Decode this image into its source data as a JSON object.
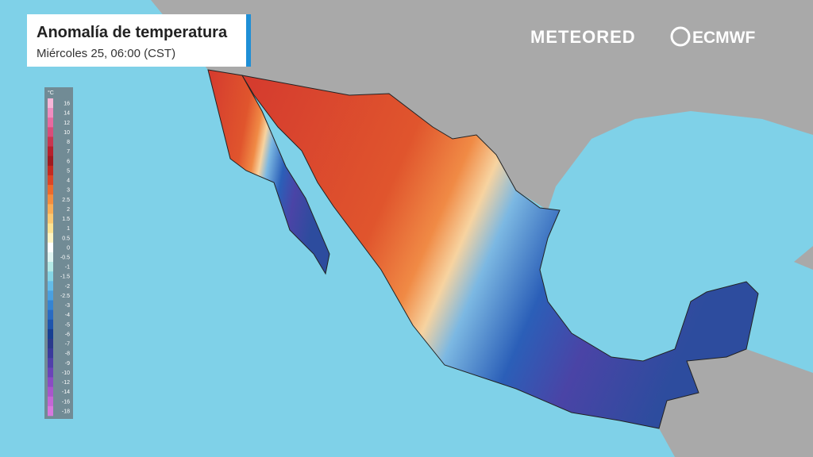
{
  "header": {
    "title": "Anomalía de temperatura",
    "subtitle": "Miércoles 25, 06:00 (CST)"
  },
  "logos": {
    "meteored": "METEORED",
    "ecmwf": "ECMWF"
  },
  "legend": {
    "unit": "°C",
    "items": [
      {
        "value": 16,
        "color": "#f7b6d8"
      },
      {
        "value": 14,
        "color": "#f08dc0"
      },
      {
        "value": 12,
        "color": "#e86aa0"
      },
      {
        "value": 10,
        "color": "#d94d7a"
      },
      {
        "value": 8,
        "color": "#c9364f"
      },
      {
        "value": 7,
        "color": "#b7202c"
      },
      {
        "value": 6,
        "color": "#a01a1f"
      },
      {
        "value": 5,
        "color": "#c42a20"
      },
      {
        "value": 4,
        "color": "#dc4526"
      },
      {
        "value": 3,
        "color": "#ee6a2c"
      },
      {
        "value": 2.5,
        "color": "#f58d3e"
      },
      {
        "value": 2,
        "color": "#f9ad56"
      },
      {
        "value": 1.5,
        "color": "#fbc972"
      },
      {
        "value": 1,
        "color": "#fde392"
      },
      {
        "value": 0.5,
        "color": "#fff4c2"
      },
      {
        "value": 0,
        "color": "#ffffff"
      },
      {
        "value": -0.5,
        "color": "#e0f5f2"
      },
      {
        "value": -1,
        "color": "#b4eae6"
      },
      {
        "value": -1.5,
        "color": "#85d6e6"
      },
      {
        "value": -2,
        "color": "#64bce8"
      },
      {
        "value": -2.5,
        "color": "#4aa0e0"
      },
      {
        "value": -3,
        "color": "#3584d2"
      },
      {
        "value": -4,
        "color": "#2a6bc2"
      },
      {
        "value": -5,
        "color": "#1e55ad"
      },
      {
        "value": -6,
        "color": "#173f92"
      },
      {
        "value": -7,
        "color": "#2a3a8c"
      },
      {
        "value": -8,
        "color": "#3a3a9c"
      },
      {
        "value": -9,
        "color": "#5040aa"
      },
      {
        "value": -10,
        "color": "#6a44b8"
      },
      {
        "value": -12,
        "color": "#8a4cc4"
      },
      {
        "value": -14,
        "color": "#a856cc"
      },
      {
        "value": -16,
        "color": "#c466d6"
      },
      {
        "value": -18,
        "color": "#d878de"
      }
    ]
  }
}
